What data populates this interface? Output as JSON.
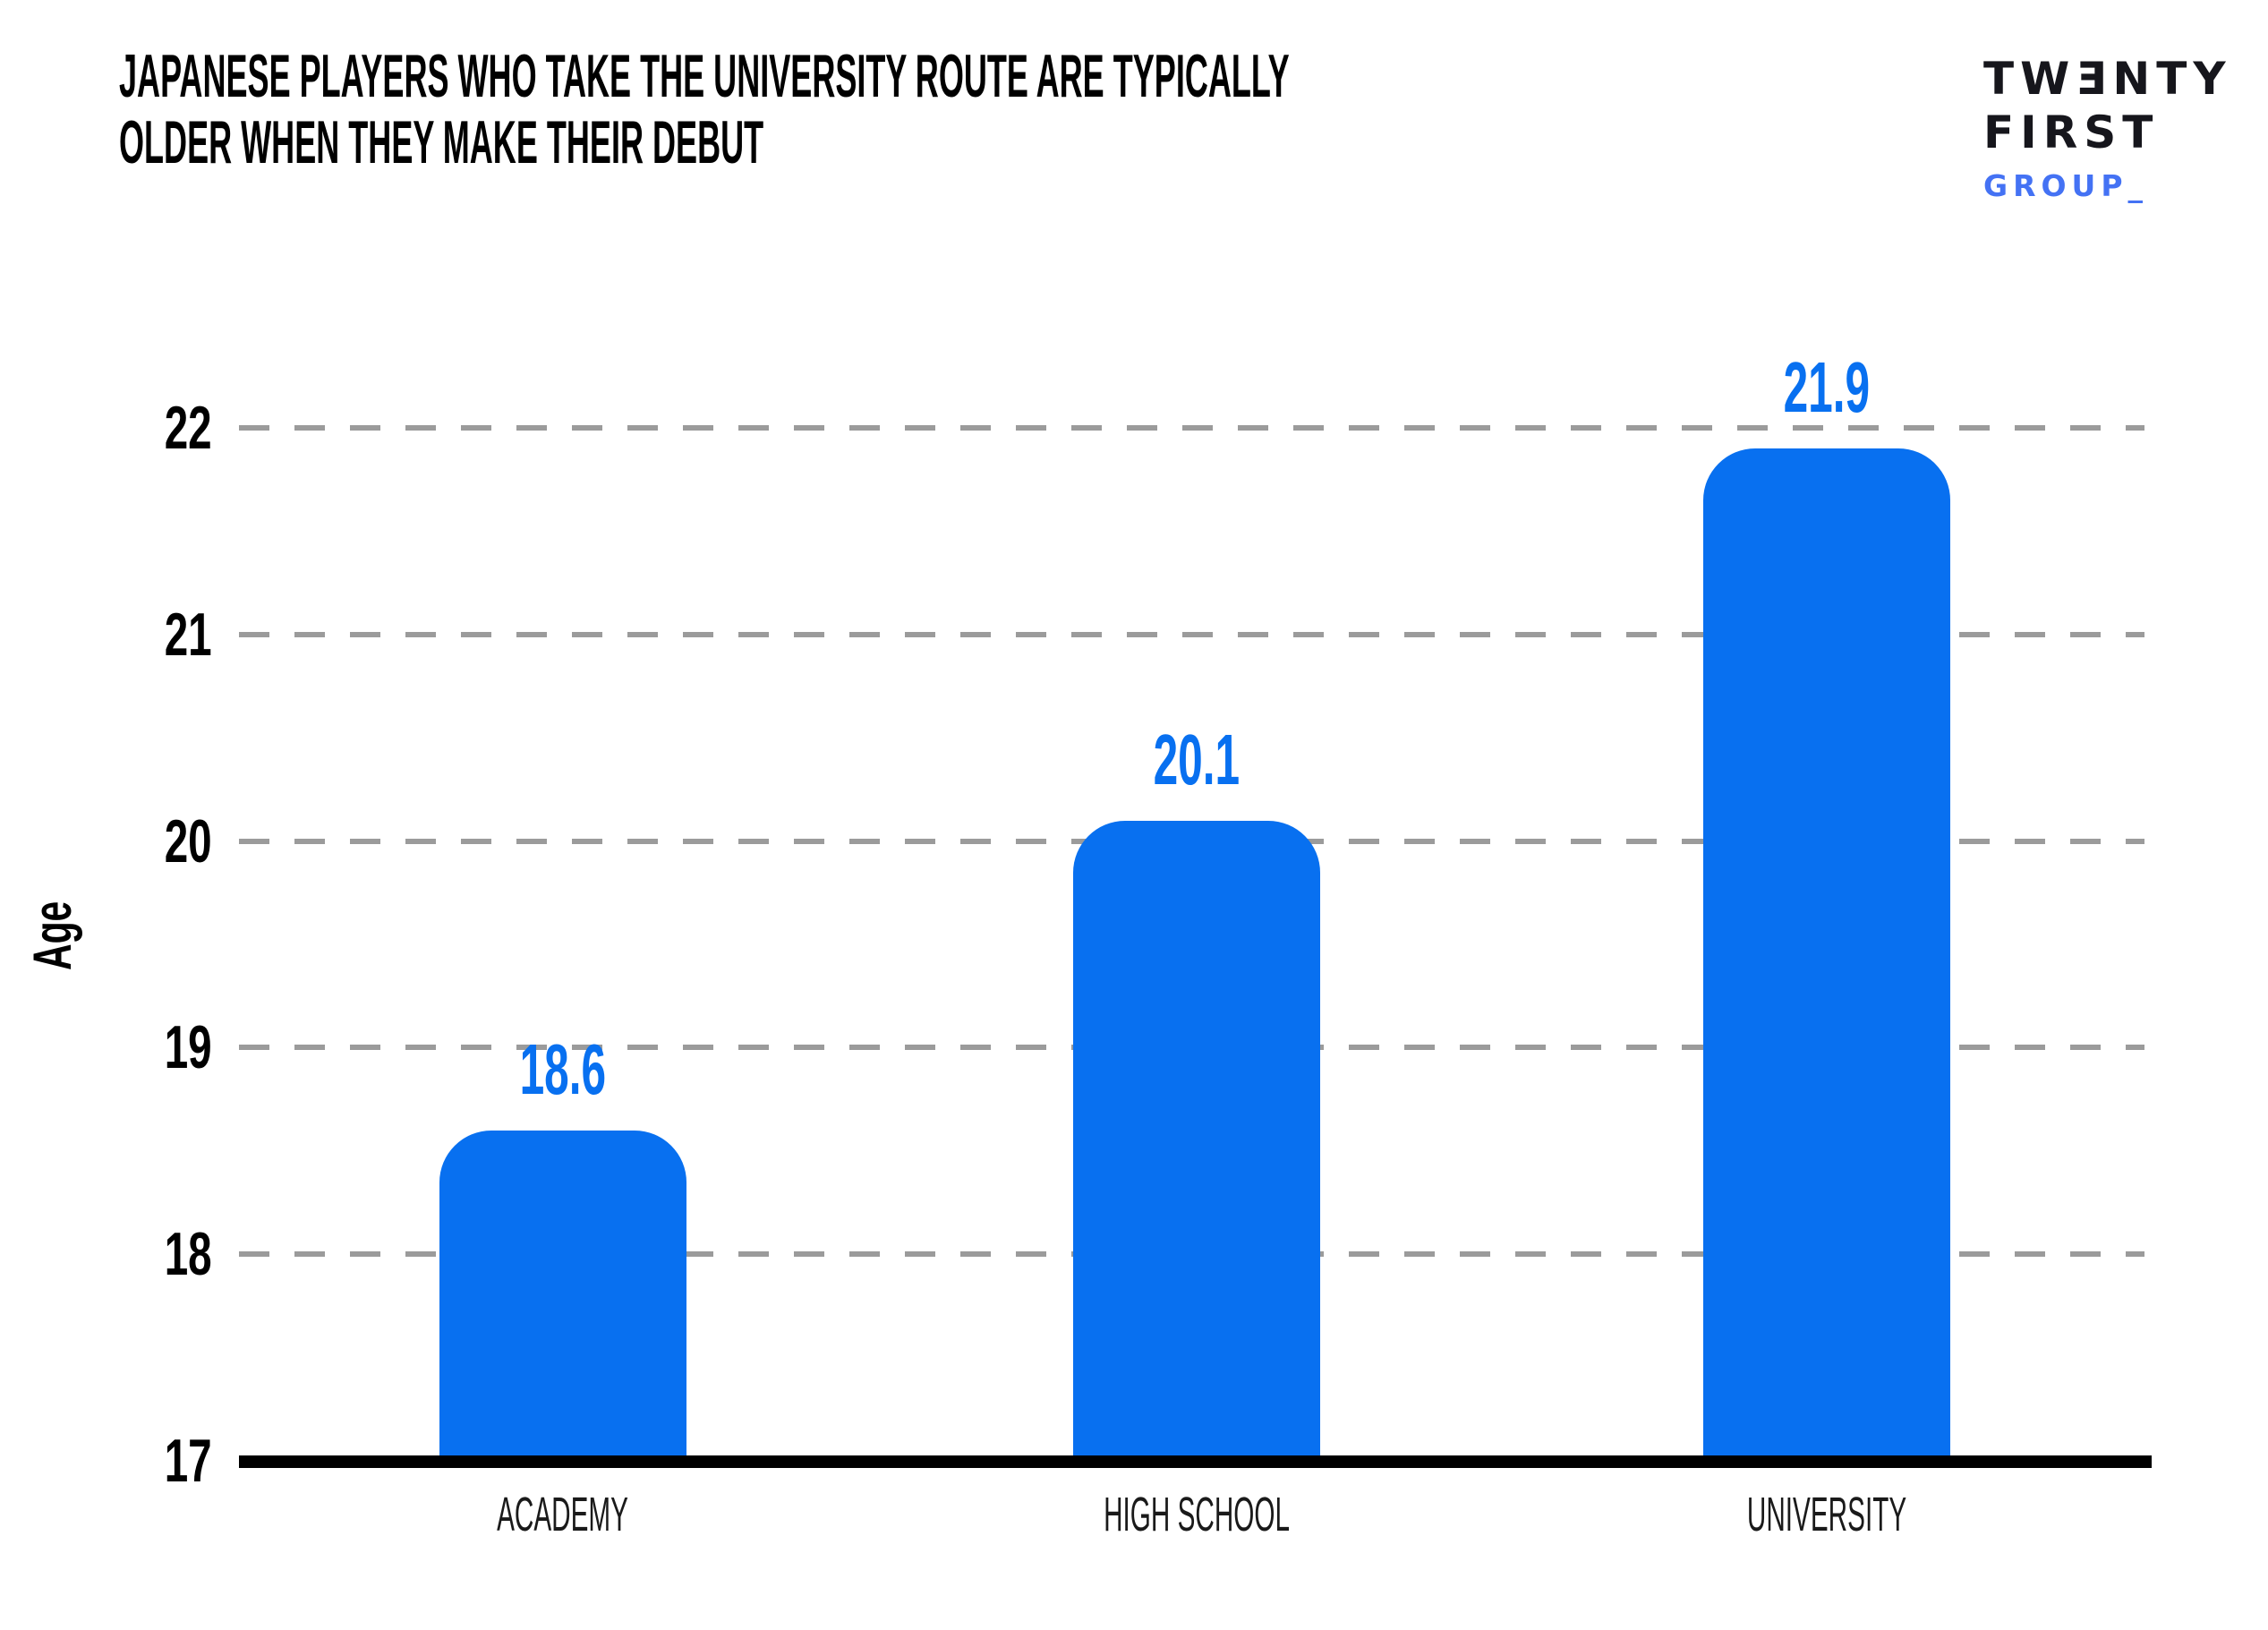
{
  "title": {
    "line1": "JAPANESE PLAYERS WHO TAKE THE UNIVERSITY ROUTE ARE TYPICALLY",
    "line2": "OLDER WHEN THEY MAKE THEIR DEBUT"
  },
  "logo": {
    "line1": "TWƎNTY",
    "line2": "FIRST",
    "line3": "GROUP_",
    "text_color": "#16161c",
    "accent_color": "#4472f4"
  },
  "chart_data": {
    "type": "bar",
    "title": "Japanese players who take the university route are typically older when they make their debut",
    "categories": [
      "ACADEMY",
      "HIGH SCHOOL",
      "UNIVERSITY"
    ],
    "values": [
      18.6,
      20.1,
      21.9
    ],
    "value_labels": [
      "18.6",
      "20.1",
      "21.9"
    ],
    "xlabel": "",
    "ylabel": "Age",
    "ylim": [
      17,
      22
    ],
    "yticks": [
      17,
      18,
      19,
      20,
      21,
      22
    ],
    "grid": "horizontal dashed, gridlines for 18-22, solid black axis at 17",
    "legend": "none",
    "bar_color": "#0870F0",
    "value_label_color": "#0870F0",
    "gridline_color": "#9B9B9B",
    "axis_color": "#000000"
  }
}
